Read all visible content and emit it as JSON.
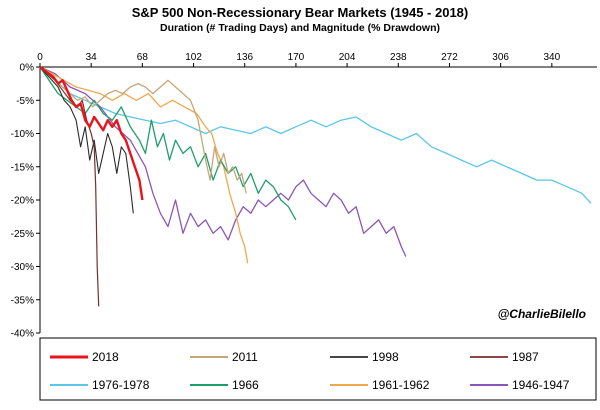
{
  "chart_data": {
    "type": "line",
    "title": "S&P 500 Non-Recessionary Bear Markets (1945 - 2018)",
    "subtitle": "Duration (# Trading Days) and Magnitude (% Drawdown)",
    "x_ticks": [
      0,
      34,
      68,
      102,
      136,
      170,
      204,
      238,
      272,
      306,
      340
    ],
    "y_ticks": [
      0,
      -5,
      -10,
      -15,
      -20,
      -25,
      -30,
      -35,
      -40
    ],
    "y_tick_labels": [
      "0%",
      "-5%",
      "-10%",
      "-15%",
      "-20%",
      "-25%",
      "-30%",
      "-35%",
      "-40%"
    ],
    "xlim": [
      0,
      370
    ],
    "ylim": [
      -40,
      0
    ],
    "x_axis_position": "top",
    "grid": false,
    "legend_position": "bottom",
    "watermark": "@CharlieBilello",
    "series": [
      {
        "name": "2018",
        "color": "#e8141b",
        "width": 2.4,
        "points": [
          [
            0,
            0
          ],
          [
            3,
            -0.5
          ],
          [
            6,
            -1
          ],
          [
            9,
            -1.5
          ],
          [
            12,
            -2.5
          ],
          [
            15,
            -2
          ],
          [
            18,
            -3.5
          ],
          [
            21,
            -5
          ],
          [
            24,
            -6
          ],
          [
            27,
            -5.5
          ],
          [
            30,
            -8
          ],
          [
            33,
            -9
          ],
          [
            36,
            -7.5
          ],
          [
            39,
            -8.5
          ],
          [
            42,
            -9.5
          ],
          [
            45,
            -8
          ],
          [
            48,
            -9
          ],
          [
            51,
            -8
          ],
          [
            54,
            -10
          ],
          [
            57,
            -11
          ],
          [
            60,
            -13
          ],
          [
            63,
            -15
          ],
          [
            66,
            -17
          ],
          [
            68,
            -20
          ]
        ]
      },
      {
        "name": "2011",
        "color": "#c4a779",
        "width": 1.3,
        "points": [
          [
            0,
            0
          ],
          [
            5,
            -1
          ],
          [
            10,
            -2
          ],
          [
            15,
            -3
          ],
          [
            20,
            -4
          ],
          [
            25,
            -5
          ],
          [
            30,
            -4.5
          ],
          [
            35,
            -6
          ],
          [
            40,
            -5
          ],
          [
            45,
            -4
          ],
          [
            50,
            -3.5
          ],
          [
            55,
            -4
          ],
          [
            60,
            -3
          ],
          [
            65,
            -2.5
          ],
          [
            70,
            -3
          ],
          [
            75,
            -4
          ],
          [
            80,
            -3
          ],
          [
            85,
            -2
          ],
          [
            90,
            -3
          ],
          [
            95,
            -4
          ],
          [
            100,
            -5
          ],
          [
            105,
            -8
          ],
          [
            110,
            -14
          ],
          [
            113,
            -17
          ],
          [
            116,
            -12
          ],
          [
            119,
            -15
          ],
          [
            122,
            -13
          ],
          [
            125,
            -16
          ],
          [
            128,
            -15
          ],
          [
            131,
            -17
          ],
          [
            134,
            -16
          ],
          [
            137,
            -19
          ]
        ]
      },
      {
        "name": "1998",
        "color": "#2b2b2b",
        "width": 1.1,
        "points": [
          [
            0,
            0
          ],
          [
            4,
            -1
          ],
          [
            8,
            -2
          ],
          [
            12,
            -3
          ],
          [
            16,
            -5
          ],
          [
            20,
            -6
          ],
          [
            24,
            -8
          ],
          [
            27,
            -12
          ],
          [
            30,
            -9
          ],
          [
            33,
            -14
          ],
          [
            36,
            -11
          ],
          [
            39,
            -16
          ],
          [
            42,
            -13
          ],
          [
            45,
            -10
          ],
          [
            48,
            -12
          ],
          [
            51,
            -16
          ],
          [
            54,
            -12
          ],
          [
            57,
            -13
          ],
          [
            60,
            -18
          ],
          [
            62,
            -22
          ]
        ]
      },
      {
        "name": "1987",
        "color": "#7a2e2e",
        "width": 1.2,
        "points": [
          [
            0,
            0
          ],
          [
            5,
            -1
          ],
          [
            10,
            -2
          ],
          [
            15,
            -3.5
          ],
          [
            20,
            -5
          ],
          [
            25,
            -6
          ],
          [
            28,
            -5
          ],
          [
            31,
            -8
          ],
          [
            34,
            -10
          ],
          [
            36,
            -12
          ],
          [
            37,
            -18
          ],
          [
            38,
            -30
          ],
          [
            39,
            -36
          ]
        ]
      },
      {
        "name": "1976-1978",
        "color": "#5bc6e6",
        "width": 1.3,
        "points": [
          [
            0,
            0
          ],
          [
            10,
            -2
          ],
          [
            20,
            -4
          ],
          [
            30,
            -5
          ],
          [
            40,
            -6
          ],
          [
            50,
            -7
          ],
          [
            60,
            -7.5
          ],
          [
            70,
            -8
          ],
          [
            80,
            -8.5
          ],
          [
            90,
            -8
          ],
          [
            100,
            -9
          ],
          [
            110,
            -10
          ],
          [
            120,
            -9
          ],
          [
            130,
            -9.5
          ],
          [
            140,
            -10
          ],
          [
            150,
            -9
          ],
          [
            160,
            -10
          ],
          [
            170,
            -9
          ],
          [
            180,
            -8
          ],
          [
            190,
            -9
          ],
          [
            200,
            -8
          ],
          [
            210,
            -7.5
          ],
          [
            220,
            -9
          ],
          [
            230,
            -10
          ],
          [
            240,
            -11
          ],
          [
            250,
            -10
          ],
          [
            260,
            -12
          ],
          [
            270,
            -13
          ],
          [
            280,
            -14
          ],
          [
            290,
            -15
          ],
          [
            300,
            -14
          ],
          [
            310,
            -15
          ],
          [
            320,
            -16
          ],
          [
            330,
            -17
          ],
          [
            340,
            -17
          ],
          [
            350,
            -18
          ],
          [
            360,
            -19
          ],
          [
            366,
            -20.5
          ]
        ]
      },
      {
        "name": "1966",
        "color": "#1e9e6a",
        "width": 1.3,
        "points": [
          [
            0,
            0
          ],
          [
            6,
            -2
          ],
          [
            12,
            -4
          ],
          [
            18,
            -5
          ],
          [
            24,
            -6
          ],
          [
            30,
            -7
          ],
          [
            36,
            -5
          ],
          [
            42,
            -7
          ],
          [
            48,
            -8
          ],
          [
            54,
            -6
          ],
          [
            60,
            -9
          ],
          [
            66,
            -11
          ],
          [
            70,
            -13
          ],
          [
            74,
            -8
          ],
          [
            78,
            -12
          ],
          [
            82,
            -10
          ],
          [
            86,
            -14
          ],
          [
            90,
            -11
          ],
          [
            95,
            -13
          ],
          [
            100,
            -12
          ],
          [
            105,
            -15
          ],
          [
            110,
            -13
          ],
          [
            115,
            -17
          ],
          [
            120,
            -14
          ],
          [
            125,
            -16
          ],
          [
            130,
            -15
          ],
          [
            135,
            -18
          ],
          [
            140,
            -16
          ],
          [
            145,
            -19
          ],
          [
            150,
            -17
          ],
          [
            155,
            -18
          ],
          [
            160,
            -20
          ],
          [
            165,
            -21
          ],
          [
            170,
            -23
          ]
        ]
      },
      {
        "name": "1961-1962",
        "color": "#f0a84c",
        "width": 1.3,
        "points": [
          [
            0,
            0
          ],
          [
            8,
            -1
          ],
          [
            16,
            -2
          ],
          [
            24,
            -3
          ],
          [
            32,
            -3.5
          ],
          [
            40,
            -4
          ],
          [
            48,
            -5
          ],
          [
            56,
            -4
          ],
          [
            64,
            -5
          ],
          [
            72,
            -4
          ],
          [
            80,
            -6
          ],
          [
            88,
            -5
          ],
          [
            96,
            -6
          ],
          [
            104,
            -7
          ],
          [
            110,
            -9
          ],
          [
            114,
            -10
          ],
          [
            118,
            -13
          ],
          [
            122,
            -15
          ],
          [
            126,
            -19
          ],
          [
            130,
            -22
          ],
          [
            133,
            -25
          ],
          [
            136,
            -27
          ],
          [
            138,
            -29.5
          ]
        ]
      },
      {
        "name": "1946-1947",
        "color": "#8c55b8",
        "width": 1.3,
        "points": [
          [
            0,
            0
          ],
          [
            10,
            -1
          ],
          [
            20,
            -3
          ],
          [
            30,
            -4
          ],
          [
            40,
            -6
          ],
          [
            50,
            -9
          ],
          [
            60,
            -11
          ],
          [
            70,
            -15
          ],
          [
            75,
            -19
          ],
          [
            80,
            -22
          ],
          [
            85,
            -24
          ],
          [
            90,
            -20
          ],
          [
            95,
            -25
          ],
          [
            100,
            -22
          ],
          [
            105,
            -24
          ],
          [
            110,
            -23
          ],
          [
            115,
            -25
          ],
          [
            120,
            -24
          ],
          [
            125,
            -26
          ],
          [
            130,
            -23
          ],
          [
            135,
            -21
          ],
          [
            140,
            -22
          ],
          [
            145,
            -20
          ],
          [
            150,
            -21
          ],
          [
            155,
            -20
          ],
          [
            160,
            -19
          ],
          [
            165,
            -20
          ],
          [
            170,
            -18
          ],
          [
            175,
            -17
          ],
          [
            180,
            -19
          ],
          [
            185,
            -20
          ],
          [
            190,
            -21
          ],
          [
            195,
            -19
          ],
          [
            200,
            -20
          ],
          [
            205,
            -22
          ],
          [
            210,
            -21
          ],
          [
            215,
            -25
          ],
          [
            220,
            -24
          ],
          [
            225,
            -23
          ],
          [
            230,
            -25
          ],
          [
            235,
            -24
          ],
          [
            240,
            -27
          ],
          [
            243,
            -28.5
          ]
        ]
      }
    ]
  }
}
